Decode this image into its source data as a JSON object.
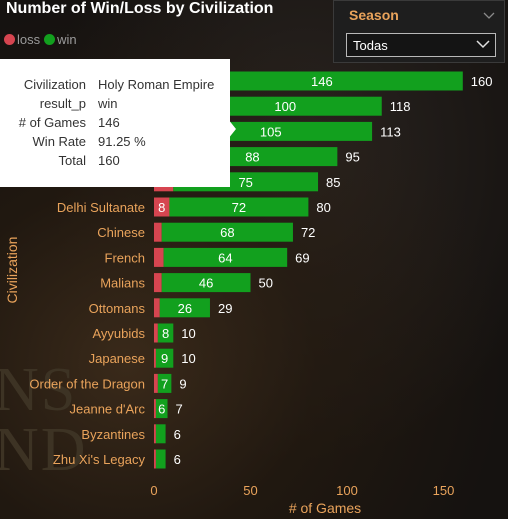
{
  "title": "Number of Win/Loss by Civilization",
  "legend": {
    "items": [
      {
        "label": "loss",
        "color": "#d64550"
      },
      {
        "label": "win",
        "color": "#12a01e"
      }
    ]
  },
  "slicer": {
    "title": "Season",
    "selected": "Todas"
  },
  "tooltip": {
    "rows": [
      {
        "key": "Civilization",
        "value": "Holy Roman Empire"
      },
      {
        "key": "result_p",
        "value": "win"
      },
      {
        "key": "# of Games",
        "value": "146"
      },
      {
        "key": "Win Rate",
        "value": "91.25 %"
      },
      {
        "key": "Total",
        "value": "160"
      }
    ]
  },
  "chart_data": {
    "type": "bar",
    "orientation": "horizontal",
    "stacked": true,
    "title": "Number of Win/Loss by Civilization",
    "xlabel": "# of Games",
    "ylabel": "Civilization",
    "xlim": [
      0,
      160
    ],
    "xticks": [
      0,
      50,
      100,
      150
    ],
    "grid": false,
    "legend_position": "top-left",
    "categories": [
      "Holy Roman Empire",
      "",
      "",
      "",
      "",
      "Delhi Sultanate",
      "Chinese",
      "French",
      "Malians",
      "Ottomans",
      "Ayyubids",
      "Japanese",
      "Order of the Dragon",
      "Jeanne d'Arc",
      "Byzantines",
      "Zhu Xi's Legacy"
    ],
    "series": [
      {
        "name": "loss",
        "color": "#d64550",
        "values": [
          14,
          18,
          8,
          7,
          10,
          8,
          4,
          5,
          4,
          3,
          2,
          1,
          2,
          1,
          1,
          1
        ]
      },
      {
        "name": "win",
        "color": "#12a01e",
        "values": [
          146,
          100,
          105,
          88,
          75,
          72,
          68,
          64,
          46,
          26,
          8,
          9,
          7,
          6,
          5,
          5
        ]
      }
    ],
    "totals": [
      160,
      118,
      113,
      95,
      85,
      80,
      72,
      69,
      50,
      29,
      10,
      10,
      9,
      7,
      6,
      6
    ],
    "win_labels": [
      "146",
      "100",
      "105",
      "88",
      "75",
      "72",
      "68",
      "64",
      "46",
      "26",
      "8",
      "9",
      "7",
      "6",
      "",
      ""
    ],
    "loss_labels": [
      "",
      "",
      "",
      "",
      "",
      "8",
      "",
      "",
      "",
      "",
      "",
      "",
      "",
      "",
      "",
      ""
    ]
  }
}
